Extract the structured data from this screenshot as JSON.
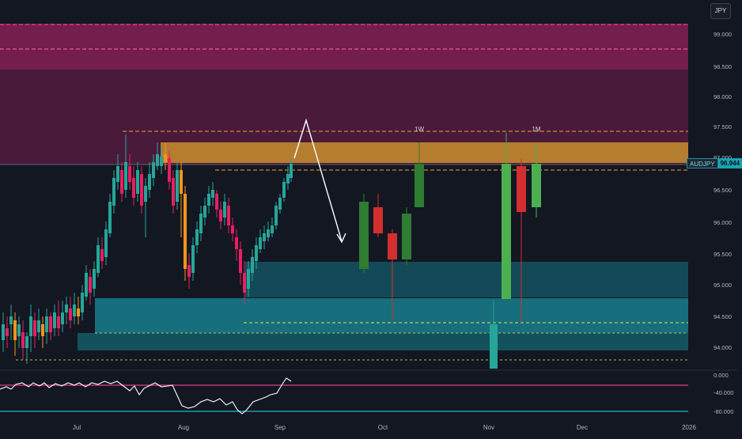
{
  "symbol": "AUDJPY",
  "currency": "JPY",
  "last_price": "96.944",
  "colors": {
    "background": "#131722",
    "bull": "#26a69a",
    "bear": "#ef5350",
    "supply_zone": "#6b1f47",
    "orange_zone": "#c8902e",
    "demand_zone": "#1aa3b3",
    "rsi_line": "#ffffff",
    "rsi_upper": "#e23d8a",
    "rsi_lower": "#23b7c7"
  },
  "chart_data": [
    {
      "type": "candlestick",
      "symbol": "AUDJPY",
      "ylim": [
        93.6,
        99.2
      ],
      "y_ticks": [
        "99.000",
        "98.500",
        "98.000",
        "97.500",
        "97.000",
        "96.500",
        "96.000",
        "95.500",
        "95.000",
        "94.500",
        "94.000"
      ],
      "x_ticks": [
        "Jul",
        "Aug",
        "Sep",
        "Oct",
        "Nov",
        "Dec",
        "2026"
      ],
      "annotations": [
        "1W",
        "1M"
      ],
      "grid": false
    },
    {
      "type": "line",
      "indicator": "oscillator",
      "y_ticks": [
        "0.000",
        "-40.000",
        "-80.000"
      ],
      "levels": [
        -20,
        -80
      ],
      "ylim": [
        -95,
        5
      ]
    }
  ]
}
